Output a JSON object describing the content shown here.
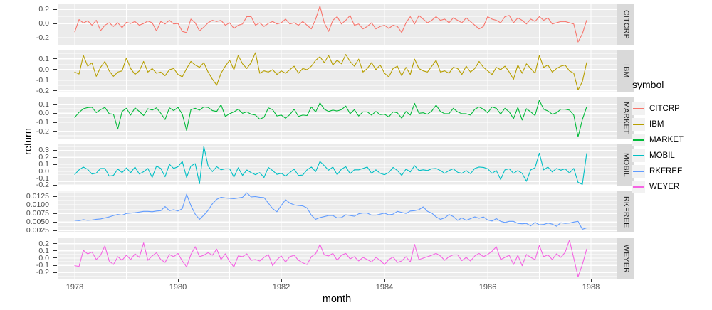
{
  "chart_data": {
    "type": "line",
    "title": "",
    "xlabel": "month",
    "ylabel": "return",
    "legend_title": "symbol",
    "legend_position": "right",
    "grid": true,
    "facet_layout": "rows, free y scales, strips on right",
    "x_start_year": 1978,
    "points_per_month": 1,
    "x_major_ticks": [
      1978,
      1980,
      1982,
      1984,
      1986,
      1988
    ],
    "x_tick_labels": [
      "1978",
      "1980",
      "1982",
      "1984",
      "1986",
      "1988"
    ],
    "x_minor_ticks": [
      1979,
      1981,
      1983,
      1985,
      1987
    ],
    "xlim": [
      1977.67,
      1988.5
    ],
    "theme": {
      "panel_bg": "#EBEBEB",
      "gridline": "#FFFFFF",
      "strip_bg": "#D9D9D9",
      "strip_text": "#1A1A1A",
      "axis_text": "#4D4D4D",
      "tick_mark": "#333333",
      "legend_key_bg": "#F2F2F2",
      "background": "#FFFFFF"
    },
    "facets": [
      {
        "label": "CITCRP",
        "color": "#F8766D",
        "ylim": [
          -0.3,
          0.285
        ],
        "yticks": [
          -0.2,
          0.0,
          0.2
        ],
        "ytick_labels": [
          "-0.2",
          "0.0",
          "0.2"
        ],
        "values": [
          -0.116,
          0.057,
          0.009,
          0.04,
          -0.023,
          0.047,
          -0.1,
          -0.023,
          0.012,
          -0.04,
          0.012,
          -0.057,
          0.019,
          0.002,
          0.03,
          -0.023,
          0.002,
          0.037,
          0.012,
          -0.103,
          0.03,
          -0.005,
          0.047,
          -0.005,
          0.002,
          -0.11,
          -0.127,
          0.064,
          0.012,
          -0.103,
          -0.05,
          0.012,
          0.047,
          0.03,
          0.047,
          -0.023,
          0.012,
          -0.068,
          -0.023,
          -0.005,
          0.099,
          0.099,
          -0.023,
          0.012,
          -0.04,
          0.002,
          0.03,
          -0.005,
          0.012,
          0.064,
          -0.005,
          0.012,
          -0.023,
          0.03,
          -0.023,
          -0.075,
          0.064,
          0.25,
          0.012,
          -0.11,
          0.047,
          0.099,
          -0.005,
          0.047,
          0.116,
          -0.023,
          -0.005,
          -0.075,
          -0.04,
          0.012,
          -0.075,
          -0.04,
          -0.023,
          -0.068,
          -0.023,
          -0.04,
          -0.127,
          0.012,
          0.099,
          -0.005,
          0.116,
          0.064,
          0.012,
          0.047,
          0.099,
          0.047,
          0.064,
          0.012,
          0.082,
          0.047,
          0.012,
          0.082,
          0.03,
          -0.023,
          -0.075,
          -0.04,
          0.099,
          0.064,
          0.047,
          0.012,
          0.099,
          0.116,
          0.012,
          0.082,
          0.047,
          -0.005,
          0.064,
          0.03,
          0.099,
          0.047,
          0.082,
          -0.005,
          0.012,
          0.03,
          0.03,
          0.012,
          -0.005,
          -0.26,
          -0.144,
          0.047
        ]
      },
      {
        "label": "IBM",
        "color": "#B79F00",
        "ylim": [
          -0.2075,
          0.1775
        ],
        "yticks": [
          -0.2,
          -0.1,
          0.0,
          0.1
        ],
        "ytick_labels": [
          "-0.2",
          "-0.1",
          "0.0",
          "0.1"
        ],
        "values": [
          -0.024,
          -0.042,
          0.131,
          0.031,
          0.062,
          -0.064,
          0.02,
          0.075,
          -0.013,
          -0.064,
          -0.024,
          -0.013,
          0.108,
          0.009,
          -0.046,
          -0.013,
          0.075,
          -0.024,
          0.009,
          -0.035,
          -0.024,
          -0.058,
          -0.002,
          0.009,
          -0.046,
          -0.069,
          0.009,
          0.075,
          0.042,
          0.02,
          0.064,
          -0.024,
          -0.091,
          -0.146,
          -0.035,
          0.031,
          0.086,
          -0.002,
          0.131,
          0.053,
          0.009,
          0.064,
          0.157,
          -0.035,
          -0.013,
          -0.024,
          -0.002,
          -0.046,
          -0.013,
          -0.035,
          -0.002,
          0.031,
          -0.035,
          0.009,
          -0.002,
          0.031,
          0.086,
          0.119,
          0.064,
          0.131,
          0.042,
          0.086,
          0.053,
          0.14,
          0.075,
          0.031,
          0.097,
          -0.024,
          0.009,
          0.064,
          -0.002,
          0.042,
          -0.035,
          -0.069,
          0.009,
          0.031,
          -0.058,
          0.02,
          -0.046,
          0.097,
          0.009,
          -0.013,
          -0.024,
          0.031,
          0.086,
          -0.024,
          -0.013,
          -0.035,
          0.02,
          0.009,
          -0.046,
          0.031,
          -0.024,
          0.009,
          0.075,
          0.02,
          -0.013,
          -0.046,
          0.02,
          -0.002,
          0.031,
          -0.024,
          -0.091,
          0.042,
          -0.035,
          0.053,
          0.009,
          -0.035,
          0.131,
          0.02,
          0.042,
          -0.024,
          0.009,
          0.031,
          0.042,
          -0.013,
          -0.035,
          -0.19,
          -0.113,
          0.064
        ]
      },
      {
        "label": "MARKET",
        "color": "#00BA38",
        "ylim": [
          -0.281,
          0.176
        ],
        "yticks": [
          -0.2,
          -0.1,
          0.0,
          0.1
        ],
        "ytick_labels": [
          "-0.2",
          "-0.1",
          "0.0",
          "0.1"
        ],
        "values": [
          -0.045,
          0.01,
          0.05,
          0.063,
          0.067,
          0.007,
          0.04,
          0.065,
          -0.005,
          -0.01,
          -0.175,
          0.02,
          0.055,
          -0.02,
          0.06,
          0.02,
          -0.025,
          0.05,
          0.035,
          0.06,
          0.0,
          -0.07,
          0.06,
          0.03,
          0.065,
          -0.01,
          -0.19,
          0.04,
          0.055,
          0.035,
          0.07,
          0.065,
          0.03,
          0.02,
          0.095,
          -0.035,
          -0.005,
          0.015,
          0.045,
          0.0,
          0.015,
          -0.01,
          -0.02,
          -0.065,
          -0.045,
          0.06,
          0.04,
          -0.03,
          -0.02,
          -0.055,
          -0.015,
          0.045,
          -0.035,
          -0.02,
          -0.025,
          0.07,
          0.015,
          0.115,
          0.045,
          0.02,
          0.035,
          0.025,
          0.04,
          0.08,
          -0.005,
          0.04,
          -0.03,
          0.015,
          0.015,
          -0.02,
          0.02,
          -0.015,
          -0.01,
          -0.04,
          0.015,
          0.005,
          -0.055,
          0.02,
          -0.02,
          0.11,
          0.0,
          0.005,
          -0.01,
          0.025,
          0.09,
          0.02,
          -0.005,
          -0.005,
          0.055,
          0.015,
          -0.005,
          -0.005,
          -0.02,
          0.045,
          0.07,
          0.045,
          0.005,
          0.07,
          0.055,
          -0.01,
          0.055,
          0.015,
          -0.06,
          0.065,
          -0.075,
          0.05,
          0.015,
          -0.025,
          0.145,
          0.045,
          0.025,
          -0.01,
          0.005,
          0.045,
          0.045,
          0.035,
          -0.02,
          -0.26,
          -0.07,
          0.07
        ]
      },
      {
        "label": "MOBIL",
        "color": "#00BFC4",
        "ylim": [
          -0.207,
          0.387
        ],
        "yticks": [
          -0.2,
          -0.1,
          0.0,
          0.1,
          0.2,
          0.3
        ],
        "ytick_labels": [
          "-0.2",
          "-0.1",
          "0.0",
          "0.1",
          "0.2",
          "0.3"
        ],
        "values": [
          -0.046,
          0.02,
          0.06,
          0.027,
          -0.04,
          -0.027,
          0.04,
          0.04,
          -0.07,
          -0.06,
          0.032,
          -0.02,
          0.047,
          -0.02,
          0.06,
          -0.04,
          -0.007,
          0.04,
          -0.09,
          0.075,
          0.04,
          -0.08,
          0.1,
          0.04,
          0.065,
          0.14,
          -0.09,
          0.075,
          0.11,
          -0.18,
          0.36,
          0.075,
          -0.005,
          0.065,
          0.02,
          0.035,
          0.035,
          -0.085,
          0.05,
          -0.06,
          0.018,
          -0.02,
          -0.05,
          -0.02,
          -0.09,
          0.055,
          0.01,
          -0.045,
          -0.03,
          -0.07,
          -0.02,
          0.03,
          -0.06,
          -0.055,
          0.02,
          0.06,
          -0.005,
          0.14,
          0.08,
          0.015,
          0.06,
          -0.05,
          0.03,
          0.065,
          -0.035,
          0.02,
          0.02,
          0.04,
          0.06,
          -0.03,
          0.02,
          -0.03,
          -0.05,
          -0.02,
          0.055,
          0.01,
          -0.06,
          0.03,
          -0.01,
          0.08,
          0.01,
          0.02,
          0.01,
          0.035,
          0.04,
          0.01,
          -0.03,
          0.01,
          0.035,
          -0.015,
          -0.03,
          0.01,
          -0.035,
          0.04,
          0.06,
          0.055,
          0.035,
          -0.03,
          0.01,
          -0.12,
          0.02,
          0.035,
          -0.03,
          0.01,
          -0.03,
          -0.145,
          0.02,
          0.05,
          0.26,
          0.02,
          0.06,
          -0.01,
          0.04,
          0.015,
          0.035,
          -0.025,
          0.04,
          -0.16,
          -0.19,
          0.254
        ]
      },
      {
        "label": "RKFREE",
        "color": "#619CFF",
        "ylim": [
          0.00196,
          0.01395
        ],
        "yticks": [
          0.0025,
          0.005,
          0.0075,
          0.01,
          0.0125
        ],
        "ytick_labels": [
          "0.0025",
          "0.0050",
          "0.0075",
          "0.0100",
          "0.0125"
        ],
        "values": [
          0.0055,
          0.0054,
          0.0057,
          0.0055,
          0.0056,
          0.0058,
          0.0059,
          0.0062,
          0.0065,
          0.0069,
          0.0072,
          0.007,
          0.0075,
          0.0076,
          0.0077,
          0.0079,
          0.0081,
          0.0081,
          0.008,
          0.0082,
          0.0083,
          0.0095,
          0.0083,
          0.0086,
          0.0082,
          0.0089,
          0.0131,
          0.0098,
          0.0073,
          0.0058,
          0.007,
          0.0084,
          0.0103,
          0.0116,
          0.0122,
          0.012,
          0.0119,
          0.0118,
          0.012,
          0.0122,
          0.0135,
          0.0123,
          0.0124,
          0.0122,
          0.0121,
          0.0105,
          0.0089,
          0.008,
          0.0098,
          0.0115,
          0.0105,
          0.01,
          0.0098,
          0.0097,
          0.0091,
          0.007,
          0.0058,
          0.0063,
          0.0066,
          0.0069,
          0.0069,
          0.0062,
          0.0063,
          0.0071,
          0.0069,
          0.0067,
          0.0074,
          0.0076,
          0.0076,
          0.007,
          0.007,
          0.0073,
          0.0076,
          0.0071,
          0.0073,
          0.0081,
          0.0078,
          0.0075,
          0.0082,
          0.0083,
          0.0086,
          0.0094,
          0.0081,
          0.0076,
          0.0065,
          0.0058,
          0.0062,
          0.0072,
          0.0066,
          0.0055,
          0.0062,
          0.0055,
          0.006,
          0.0065,
          0.0061,
          0.0065,
          0.0056,
          0.0053,
          0.006,
          0.0052,
          0.0049,
          0.0052,
          0.0052,
          0.0046,
          0.0045,
          0.0046,
          0.0039,
          0.0049,
          0.0042,
          0.0043,
          0.0047,
          0.0044,
          0.0038,
          0.0048,
          0.0046,
          0.0047,
          0.005,
          0.0052,
          0.0029,
          0.0033
        ]
      },
      {
        "label": "WEYER",
        "color": "#F564E3",
        "ylim": [
          -0.296,
          0.276
        ],
        "yticks": [
          -0.2,
          -0.1,
          0.0,
          0.1,
          0.2
        ],
        "ytick_labels": [
          "-0.2",
          "-0.1",
          "0.0",
          "0.1",
          "0.2"
        ],
        "values": [
          -0.105,
          -0.115,
          0.108,
          0.058,
          0.085,
          -0.02,
          0.04,
          0.17,
          -0.04,
          -0.089,
          0.02,
          -0.03,
          0.04,
          -0.02,
          0.06,
          0.01,
          0.21,
          -0.03,
          0.03,
          0.075,
          -0.02,
          -0.06,
          0.05,
          0.02,
          0.065,
          -0.04,
          -0.122,
          0.05,
          0.158,
          0.02,
          0.04,
          0.075,
          0.04,
          0.125,
          -0.02,
          0.06,
          -0.05,
          -0.122,
          0.03,
          0.02,
          0.06,
          -0.03,
          -0.02,
          -0.04,
          0.01,
          0.05,
          -0.105,
          -0.02,
          0.03,
          -0.055,
          0.02,
          0.04,
          -0.03,
          -0.065,
          -0.09,
          0.02,
          0.06,
          0.19,
          0.045,
          0.03,
          0.065,
          -0.03,
          0.04,
          0.065,
          -0.01,
          0.02,
          -0.04,
          0.01,
          -0.02,
          -0.055,
          0.01,
          -0.03,
          -0.09,
          -0.02,
          0.015,
          -0.06,
          -0.04,
          0.02,
          -0.055,
          0.19,
          -0.02,
          0.0,
          0.02,
          0.04,
          0.065,
          0.03,
          -0.03,
          0.02,
          0.045,
          0.045,
          -0.035,
          0.01,
          -0.04,
          0.03,
          0.065,
          0.02,
          0.05,
          0.095,
          0.158,
          -0.02,
          0.01,
          0.04,
          -0.09,
          0.04,
          -0.105,
          0.05,
          0.01,
          -0.02,
          0.174,
          0.02,
          0.045,
          -0.02,
          0.06,
          0.01,
          0.08,
          0.25,
          0.0,
          -0.26,
          -0.09,
          0.125
        ]
      }
    ]
  }
}
